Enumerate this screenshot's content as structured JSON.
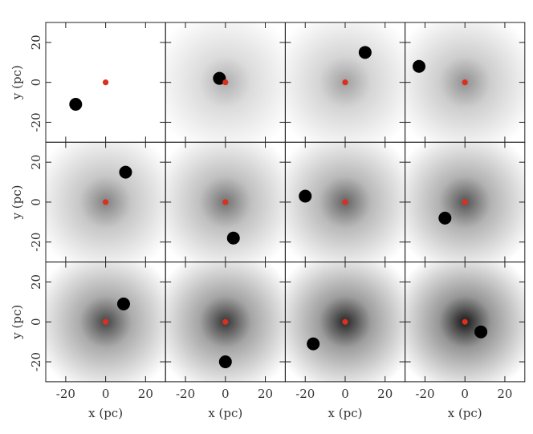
{
  "chart_data": [
    {
      "type": "scatter",
      "x": [
        -15,
        0
      ],
      "values": [
        -11,
        0
      ],
      "colors": [
        "#000000",
        "#d9301f"
      ],
      "xlim": [
        -30,
        30
      ],
      "ylim": [
        -30,
        30
      ],
      "xticks": [
        -20,
        0,
        20
      ],
      "yticks": [
        -20,
        0,
        20
      ],
      "ylabel": "y (pc)"
    },
    {
      "type": "scatter",
      "x": [
        -3,
        0
      ],
      "values": [
        2,
        0
      ],
      "colors": [
        "#000000",
        "#d9301f"
      ],
      "xlim": [
        -30,
        30
      ],
      "ylim": [
        -30,
        30
      ],
      "xticks": [
        -20,
        0,
        20
      ],
      "yticks": [
        -20,
        0,
        20
      ]
    },
    {
      "type": "scatter",
      "x": [
        10,
        0
      ],
      "values": [
        15,
        0
      ],
      "colors": [
        "#000000",
        "#d9301f"
      ],
      "xlim": [
        -30,
        30
      ],
      "ylim": [
        -30,
        30
      ],
      "xticks": [
        -20,
        0,
        20
      ],
      "yticks": [
        -20,
        0,
        20
      ]
    },
    {
      "type": "scatter",
      "x": [
        -23,
        0
      ],
      "values": [
        8,
        0
      ],
      "colors": [
        "#000000",
        "#d9301f"
      ],
      "xlim": [
        -30,
        30
      ],
      "ylim": [
        -30,
        30
      ],
      "xticks": [
        -20,
        0,
        20
      ],
      "yticks": [
        -20,
        0,
        20
      ]
    },
    {
      "type": "scatter",
      "x": [
        10,
        0
      ],
      "values": [
        15,
        0
      ],
      "colors": [
        "#000000",
        "#d9301f"
      ],
      "xlim": [
        -30,
        30
      ],
      "ylim": [
        -30,
        30
      ],
      "xticks": [
        -20,
        0,
        20
      ],
      "yticks": [
        -20,
        0,
        20
      ],
      "ylabel": "y (pc)"
    },
    {
      "type": "scatter",
      "x": [
        4,
        0
      ],
      "values": [
        -18,
        0
      ],
      "colors": [
        "#000000",
        "#d9301f"
      ],
      "xlim": [
        -30,
        30
      ],
      "ylim": [
        -30,
        30
      ],
      "xticks": [
        -20,
        0,
        20
      ],
      "yticks": [
        -20,
        0,
        20
      ]
    },
    {
      "type": "scatter",
      "x": [
        -20,
        0
      ],
      "values": [
        3,
        0
      ],
      "colors": [
        "#000000",
        "#d9301f"
      ],
      "xlim": [
        -30,
        30
      ],
      "ylim": [
        -30,
        30
      ],
      "xticks": [
        -20,
        0,
        20
      ],
      "yticks": [
        -20,
        0,
        20
      ]
    },
    {
      "type": "scatter",
      "x": [
        -10,
        0
      ],
      "values": [
        -8,
        0
      ],
      "colors": [
        "#000000",
        "#d9301f"
      ],
      "xlim": [
        -30,
        30
      ],
      "ylim": [
        -30,
        30
      ],
      "xticks": [
        -20,
        0,
        20
      ],
      "yticks": [
        -20,
        0,
        20
      ]
    },
    {
      "type": "scatter",
      "x": [
        9,
        0
      ],
      "values": [
        9,
        0
      ],
      "colors": [
        "#000000",
        "#d9301f"
      ],
      "xlim": [
        -30,
        30
      ],
      "ylim": [
        -30,
        30
      ],
      "xticks": [
        -20,
        0,
        20
      ],
      "yticks": [
        -20,
        0,
        20
      ],
      "ylabel": "y (pc)",
      "xlabel": "x (pc)"
    },
    {
      "type": "scatter",
      "x": [
        0,
        0
      ],
      "values": [
        -20,
        0
      ],
      "colors": [
        "#000000",
        "#d9301f"
      ],
      "xlim": [
        -30,
        30
      ],
      "ylim": [
        -30,
        30
      ],
      "xticks": [
        -20,
        0,
        20
      ],
      "yticks": [
        -20,
        0,
        20
      ],
      "xlabel": "x (pc)"
    },
    {
      "type": "scatter",
      "x": [
        -16,
        0
      ],
      "values": [
        -11,
        0
      ],
      "colors": [
        "#000000",
        "#d9301f"
      ],
      "xlim": [
        -30,
        30
      ],
      "ylim": [
        -30,
        30
      ],
      "xticks": [
        -20,
        0,
        20
      ],
      "yticks": [
        -20,
        0,
        20
      ],
      "xlabel": "x (pc)"
    },
    {
      "type": "scatter",
      "x": [
        8,
        0
      ],
      "values": [
        -5,
        0
      ],
      "colors": [
        "#000000",
        "#d9301f"
      ],
      "xlim": [
        -30,
        30
      ],
      "ylim": [
        -30,
        30
      ],
      "xticks": [
        -20,
        0,
        20
      ],
      "yticks": [
        -20,
        0,
        20
      ],
      "xlabel": "x (pc)"
    }
  ]
}
